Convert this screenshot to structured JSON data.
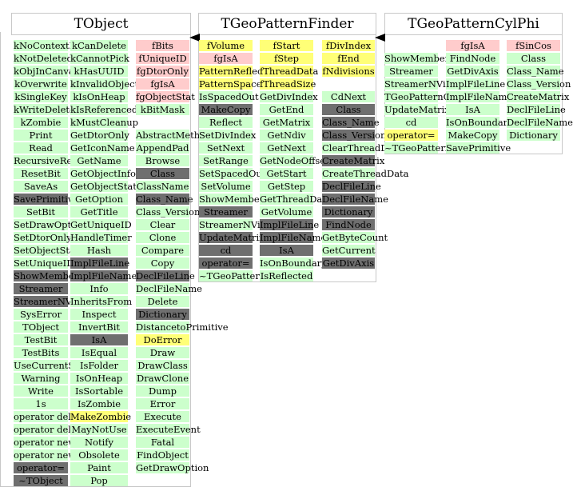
{
  "classes": [
    {
      "name": "TObject",
      "columns": [
        [
          [
            "kNoContextMenu",
            "g"
          ],
          [
            "kNotDeleted",
            "g"
          ],
          [
            "kObjInCanvas",
            "g"
          ],
          [
            "kOverwrite",
            "g"
          ],
          [
            "kSingleKey",
            "g"
          ],
          [
            "kWriteDelete",
            "g"
          ],
          [
            "kZombie",
            "g"
          ],
          [
            "Print",
            "g"
          ],
          [
            "Read",
            "g"
          ],
          [
            "RecursiveRemove",
            "g"
          ],
          [
            "ResetBit",
            "g"
          ],
          [
            "SaveAs",
            "g"
          ],
          [
            "SavePrimitive",
            "k"
          ],
          [
            "SetBit",
            "g"
          ],
          [
            "SetDrawOption",
            "g"
          ],
          [
            "SetDtorOnly",
            "g"
          ],
          [
            "SetObjectStat",
            "g"
          ],
          [
            "SetUniqueID",
            "g"
          ],
          [
            "ShowMembers",
            "k"
          ],
          [
            "Streamer",
            "k"
          ],
          [
            "StreamerNVirtual",
            "k"
          ],
          [
            "SysError",
            "g"
          ],
          [
            "TObject",
            "g"
          ],
          [
            "TestBit",
            "g"
          ],
          [
            "TestBits",
            "g"
          ],
          [
            "UseCurrentStyle",
            "g"
          ],
          [
            "Warning",
            "g"
          ],
          [
            "Write",
            "g"
          ],
          [
            "1s",
            "g"
          ],
          [
            "operator delete",
            "g"
          ],
          [
            "operator delete[]",
            "g"
          ],
          [
            "operator new",
            "g"
          ],
          [
            "operator new[]",
            "g"
          ],
          [
            "operator=",
            "k"
          ],
          [
            "~TObject",
            "k"
          ]
        ],
        [
          [
            "kCanDelete",
            "g"
          ],
          [
            "kCannotPick",
            "g"
          ],
          [
            "kHasUUID",
            "g"
          ],
          [
            "kInvalidObject",
            "g"
          ],
          [
            "kIsOnHeap",
            "g"
          ],
          [
            "kIsReferenced",
            "g"
          ],
          [
            "kMustCleanup",
            "g"
          ],
          [
            "GetDtorOnly",
            "g"
          ],
          [
            "GetIconName",
            "g"
          ],
          [
            "GetName",
            "g"
          ],
          [
            "GetObjectInfo",
            "g"
          ],
          [
            "GetObjectStat",
            "g"
          ],
          [
            "GetOption",
            "g"
          ],
          [
            "GetTitle",
            "g"
          ],
          [
            "GetUniqueID",
            "g"
          ],
          [
            "HandleTimer",
            "g"
          ],
          [
            "Hash",
            "g"
          ],
          [
            "ImplFileLine",
            "k"
          ],
          [
            "ImplFileName",
            "k"
          ],
          [
            "Info",
            "g"
          ],
          [
            "InheritsFrom",
            "g"
          ],
          [
            "Inspect",
            "g"
          ],
          [
            "InvertBit",
            "g"
          ],
          [
            "IsA",
            "k"
          ],
          [
            "IsEqual",
            "g"
          ],
          [
            "IsFolder",
            "g"
          ],
          [
            "IsOnHeap",
            "g"
          ],
          [
            "IsSortable",
            "g"
          ],
          [
            "IsZombie",
            "g"
          ],
          [
            "MakeZombie",
            "y"
          ],
          [
            "MayNotUse",
            "g"
          ],
          [
            "Notify",
            "g"
          ],
          [
            "Obsolete",
            "g"
          ],
          [
            "Paint",
            "g"
          ],
          [
            "Pop",
            "g"
          ]
        ],
        [
          [
            "fBits",
            "r"
          ],
          [
            "fUniqueID",
            "r"
          ],
          [
            "fgDtorOnly",
            "r"
          ],
          [
            "fgIsA",
            "r"
          ],
          [
            "fgObjectStat",
            "r"
          ],
          [
            "kBitMask",
            "g"
          ],
          [
            "",
            "w"
          ],
          [
            "AbstractMethod",
            "g"
          ],
          [
            "AppendPad",
            "g"
          ],
          [
            "Browse",
            "g"
          ],
          [
            "Class",
            "k"
          ],
          [
            "ClassName",
            "g"
          ],
          [
            "Class_Name",
            "k"
          ],
          [
            "Class_Version",
            "g"
          ],
          [
            "Clear",
            "g"
          ],
          [
            "Clone",
            "g"
          ],
          [
            "Compare",
            "g"
          ],
          [
            "Copy",
            "g"
          ],
          [
            "DeclFileLine",
            "k"
          ],
          [
            "DeclFileName",
            "g"
          ],
          [
            "Delete",
            "g"
          ],
          [
            "Dictionary",
            "k"
          ],
          [
            "DistancetoPrimitive",
            "g"
          ],
          [
            "DoError",
            "y"
          ],
          [
            "Draw",
            "g"
          ],
          [
            "DrawClass",
            "g"
          ],
          [
            "DrawClone",
            "g"
          ],
          [
            "Dump",
            "g"
          ],
          [
            "Error",
            "g"
          ],
          [
            "Execute",
            "g"
          ],
          [
            "ExecuteEvent",
            "g"
          ],
          [
            "Fatal",
            "g"
          ],
          [
            "FindObject",
            "g"
          ],
          [
            "GetDrawOption",
            "g"
          ]
        ]
      ]
    },
    {
      "name": "TGeoPatternFinder",
      "columns": [
        [
          [
            "fVolume",
            "y"
          ],
          [
            "fgIsA",
            "r"
          ],
          [
            "PatternReflected",
            "y"
          ],
          [
            "PatternSpacedOut",
            "y"
          ],
          [
            "IsSpacedOut",
            "g"
          ],
          [
            "MakeCopy",
            "k"
          ],
          [
            "Reflect",
            "g"
          ],
          [
            "SetDivIndex",
            "g"
          ],
          [
            "SetNext",
            "g"
          ],
          [
            "SetRange",
            "g"
          ],
          [
            "SetSpacedOut",
            "g"
          ],
          [
            "SetVolume",
            "g"
          ],
          [
            "ShowMembers",
            "g"
          ],
          [
            "Streamer",
            "k"
          ],
          [
            "StreamerNVirtual",
            "g"
          ],
          [
            "UpdateMatrix",
            "k"
          ],
          [
            "cd",
            "k"
          ],
          [
            "operator=",
            "k"
          ],
          [
            "~TGeoPatternFinder",
            "g"
          ]
        ],
        [
          [
            "fStart",
            "y"
          ],
          [
            "fStep",
            "y"
          ],
          [
            "fThreadData",
            "y"
          ],
          [
            "fThreadSize",
            "y"
          ],
          [
            "GetDivIndex",
            "g"
          ],
          [
            "GetEnd",
            "g"
          ],
          [
            "GetMatrix",
            "g"
          ],
          [
            "GetNdiv",
            "g"
          ],
          [
            "GetNext",
            "g"
          ],
          [
            "GetNodeOffset",
            "g"
          ],
          [
            "GetStart",
            "g"
          ],
          [
            "GetStep",
            "g"
          ],
          [
            "GetThreadData",
            "g"
          ],
          [
            "GetVolume",
            "g"
          ],
          [
            "ImplFileLine",
            "k"
          ],
          [
            "ImplFileName",
            "k"
          ],
          [
            "IsA",
            "k"
          ],
          [
            "IsOnBoundary",
            "g"
          ],
          [
            "IsReflected",
            "g"
          ]
        ],
        [
          [
            "fDivIndex",
            "y"
          ],
          [
            "fEnd",
            "y"
          ],
          [
            "fNdivisions",
            "y"
          ],
          [
            "",
            "w"
          ],
          [
            "CdNext",
            "g"
          ],
          [
            "Class",
            "k"
          ],
          [
            "Class_Name",
            "k"
          ],
          [
            "Class_Version",
            "k"
          ],
          [
            "ClearThreadData",
            "g"
          ],
          [
            "CreateMatrix",
            "k"
          ],
          [
            "CreateThreadData",
            "g"
          ],
          [
            "DeclFileLine",
            "k"
          ],
          [
            "DeclFileName",
            "k"
          ],
          [
            "Dictionary",
            "k"
          ],
          [
            "FindNode",
            "k"
          ],
          [
            "GetByteCount",
            "g"
          ],
          [
            "GetCurrent",
            "g"
          ],
          [
            "GetDivAxis",
            "k"
          ]
        ]
      ]
    },
    {
      "name": "TGeoPatternCylPhi",
      "columns": [
        [
          [
            "",
            "w"
          ],
          [
            "ShowMembers",
            "g"
          ],
          [
            "Streamer",
            "g"
          ],
          [
            "StreamerNVirtual",
            "g"
          ],
          [
            "TGeoPatternCylPhi",
            "g"
          ],
          [
            "UpdateMatrix",
            "g"
          ],
          [
            "cd",
            "g"
          ],
          [
            "operator=",
            "y"
          ],
          [
            "~TGeoPatternCylPhi",
            "g"
          ]
        ],
        [
          [
            "fgIsA",
            "r"
          ],
          [
            "FindNode",
            "g"
          ],
          [
            "GetDivAxis",
            "g"
          ],
          [
            "ImplFileLine",
            "g"
          ],
          [
            "ImplFileName",
            "g"
          ],
          [
            "IsA",
            "g"
          ],
          [
            "IsOnBoundary",
            "g"
          ],
          [
            "MakeCopy",
            "g"
          ],
          [
            "SavePrimitive",
            "g"
          ]
        ],
        [
          [
            "fSinCos",
            "r"
          ],
          [
            "Class",
            "g"
          ],
          [
            "Class_Name",
            "g"
          ],
          [
            "Class_Version",
            "g"
          ],
          [
            "CreateMatrix",
            "g"
          ],
          [
            "DeclFileLine",
            "g"
          ],
          [
            "DeclFileName",
            "g"
          ],
          [
            "Dictionary",
            "g"
          ]
        ]
      ]
    }
  ],
  "legend_colors": {
    "method": "#ccffcc",
    "data_member": "#ffcccc",
    "highlighted": "#ffff77",
    "overridden": "#6f6f6f"
  }
}
